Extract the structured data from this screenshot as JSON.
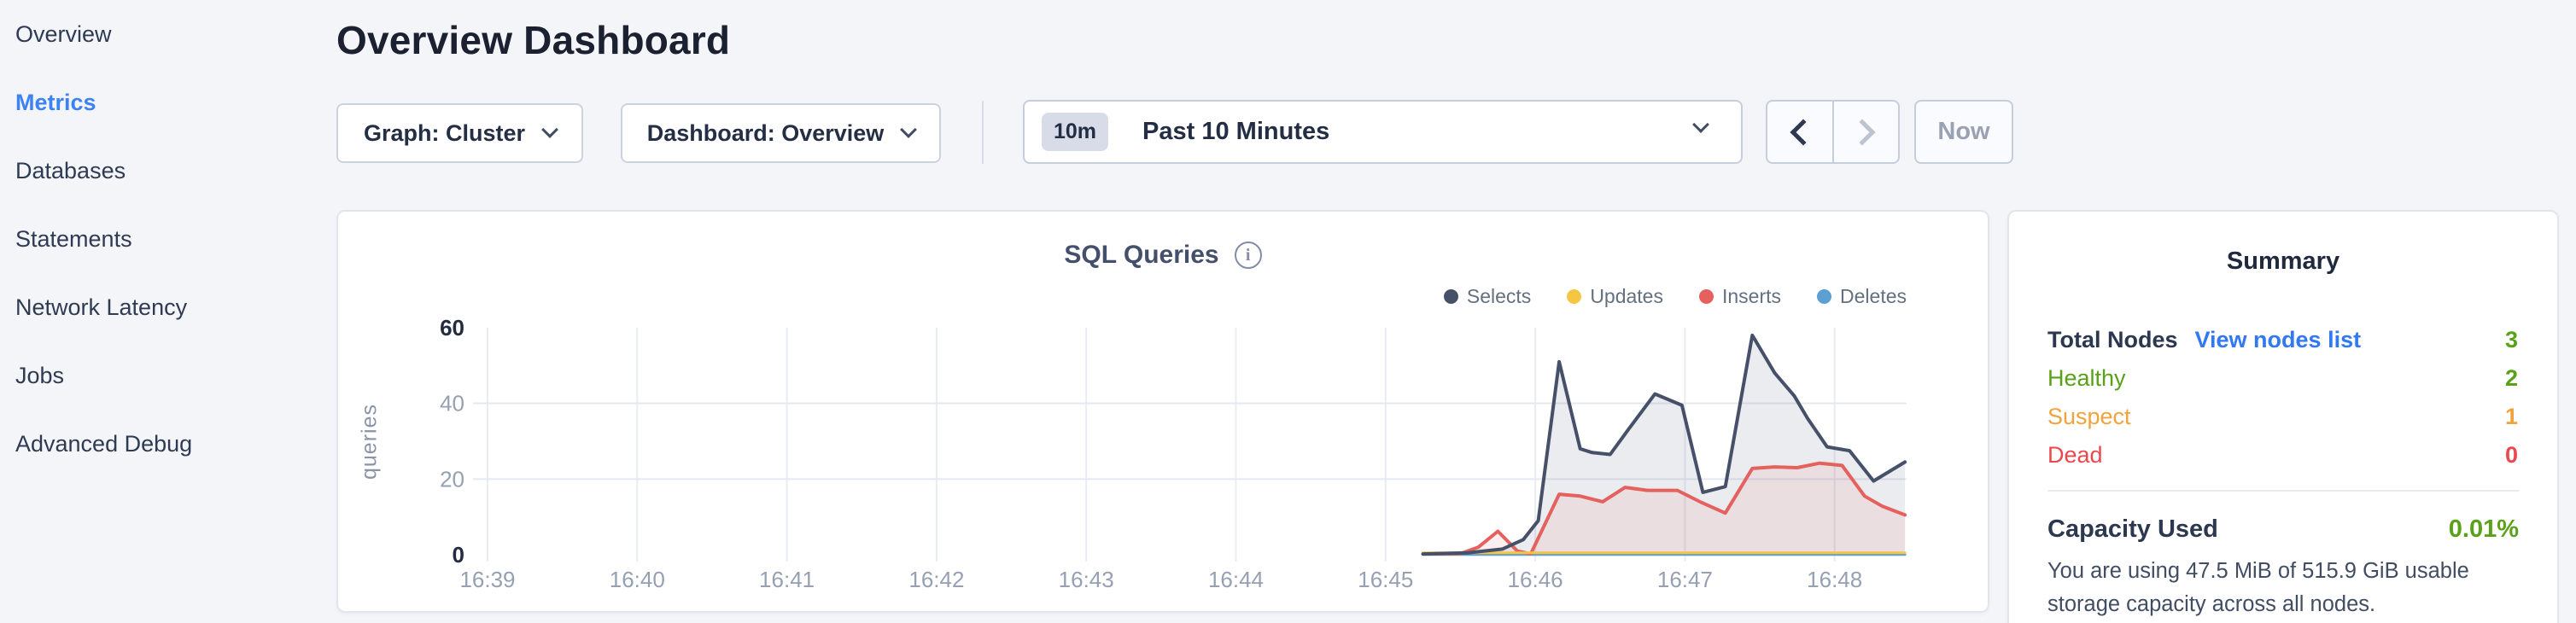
{
  "sidebar": {
    "items": [
      {
        "label": "Overview",
        "active": false
      },
      {
        "label": "Metrics",
        "active": true
      },
      {
        "label": "Databases",
        "active": false
      },
      {
        "label": "Statements",
        "active": false
      },
      {
        "label": "Network Latency",
        "active": false
      },
      {
        "label": "Jobs",
        "active": false
      },
      {
        "label": "Advanced Debug",
        "active": false
      }
    ]
  },
  "header": {
    "title": "Overview Dashboard"
  },
  "toolbar": {
    "graph_dropdown": "Graph: Cluster",
    "dashboard_dropdown": "Dashboard: Overview",
    "time_badge": "10m",
    "time_label": "Past 10 Minutes",
    "now_label": "Now"
  },
  "chart_card": {
    "title": "SQL Queries"
  },
  "chart_data": {
    "type": "area",
    "title": "SQL Queries",
    "ylabel": "queries",
    "ylim": [
      0,
      60
    ],
    "y_ticks": [
      0,
      20,
      40,
      60
    ],
    "grid_y": [
      20,
      40
    ],
    "x_ticks": [
      "16:39",
      "16:40",
      "16:41",
      "16:42",
      "16:43",
      "16:44",
      "16:45",
      "16:46",
      "16:47",
      "16:48"
    ],
    "x_unit": "minutes-after-16:39",
    "legend_position": "top-right",
    "series": [
      {
        "name": "Selects",
        "color": "#475069",
        "fill": "rgba(71,80,105,0.11)",
        "width": 4,
        "points": [
          [
            6.25,
            0.2
          ],
          [
            6.55,
            0.5
          ],
          [
            6.78,
            1.5
          ],
          [
            6.92,
            4
          ],
          [
            7.02,
            9
          ],
          [
            7.16,
            51
          ],
          [
            7.3,
            28
          ],
          [
            7.38,
            27
          ],
          [
            7.5,
            26.5
          ],
          [
            7.62,
            33
          ],
          [
            7.8,
            42.5
          ],
          [
            7.98,
            39.5
          ],
          [
            8.12,
            16.5
          ],
          [
            8.27,
            18
          ],
          [
            8.45,
            58
          ],
          [
            8.6,
            48
          ],
          [
            8.73,
            42
          ],
          [
            8.82,
            36
          ],
          [
            8.95,
            28.5
          ],
          [
            9.1,
            27.5
          ],
          [
            9.26,
            19.5
          ],
          [
            9.47,
            24.5
          ]
        ]
      },
      {
        "name": "Updates",
        "color": "#f5c644",
        "fill": null,
        "width": 3,
        "points": [
          [
            6.25,
            0.5
          ],
          [
            9.47,
            0.5
          ]
        ]
      },
      {
        "name": "Inserts",
        "color": "#e5615e",
        "fill": "rgba(229,97,94,0.10)",
        "width": 4,
        "points": [
          [
            6.25,
            0.2
          ],
          [
            6.5,
            0.3
          ],
          [
            6.62,
            2
          ],
          [
            6.75,
            6.2
          ],
          [
            6.88,
            1
          ],
          [
            6.97,
            0.2
          ],
          [
            7.16,
            16
          ],
          [
            7.3,
            15.5
          ],
          [
            7.45,
            14
          ],
          [
            7.6,
            17.8
          ],
          [
            7.75,
            17
          ],
          [
            7.95,
            17
          ],
          [
            8.1,
            14
          ],
          [
            8.27,
            11
          ],
          [
            8.45,
            22.8
          ],
          [
            8.6,
            23.2
          ],
          [
            8.75,
            23
          ],
          [
            8.9,
            24.2
          ],
          [
            9.05,
            23.6
          ],
          [
            9.2,
            15.5
          ],
          [
            9.32,
            12.8
          ],
          [
            9.47,
            10.5
          ]
        ]
      },
      {
        "name": "Deletes",
        "color": "#5b9fd3",
        "fill": null,
        "width": 3,
        "points": [
          [
            6.25,
            0.05
          ],
          [
            9.47,
            0.05
          ]
        ]
      }
    ]
  },
  "summary": {
    "title": "Summary",
    "rows": [
      {
        "label": "Total Nodes",
        "link": "View nodes list",
        "value": "3",
        "status": "green"
      },
      {
        "label": "Healthy",
        "value": "2",
        "status": "green"
      },
      {
        "label": "Suspect",
        "value": "1",
        "status": "orange"
      },
      {
        "label": "Dead",
        "value": "0",
        "status": "red"
      }
    ],
    "capacity_label": "Capacity Used",
    "capacity_value": "0.01%",
    "capacity_description": "You are using 47.5 MiB of 515.9 GiB usable storage capacity across all nodes."
  },
  "colors": {
    "nav_active": "#3d82f2",
    "link_blue": "#3179f2",
    "status_green": "#58a118",
    "status_orange": "#f0a33c",
    "status_red": "#e9494d",
    "page_background": "#f3f5f9"
  }
}
